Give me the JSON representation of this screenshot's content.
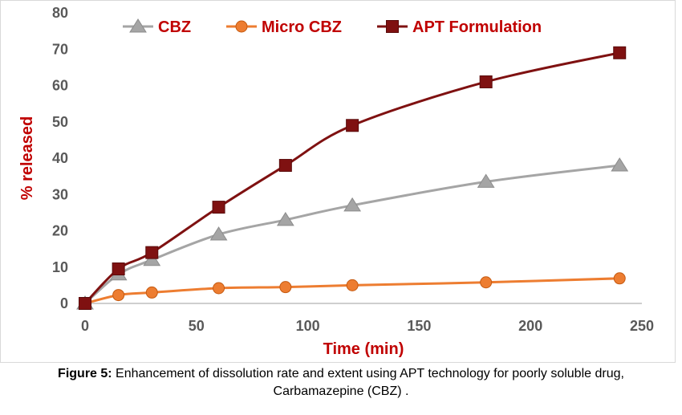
{
  "chart_data": {
    "type": "line",
    "title": "",
    "xlabel": "Time (min)",
    "ylabel": "% released",
    "xlim": [
      0,
      250
    ],
    "ylim": [
      0,
      80
    ],
    "xticks": [
      0,
      50,
      100,
      150,
      200,
      250
    ],
    "yticks": [
      0,
      10,
      20,
      30,
      40,
      50,
      60,
      70,
      80
    ],
    "grid": false,
    "legend_position": "top",
    "series": [
      {
        "name": "CBZ",
        "color": "#a5a5a5",
        "marker": "triangle",
        "x": [
          0,
          15,
          30,
          60,
          90,
          120,
          180,
          240
        ],
        "y": [
          0,
          8,
          12,
          19,
          23,
          27,
          33.5,
          38
        ]
      },
      {
        "name": "Micro CBZ",
        "color": "#ed7d31",
        "marker": "circle",
        "x": [
          0,
          15,
          30,
          60,
          90,
          120,
          180,
          240
        ],
        "y": [
          0,
          2.3,
          3,
          4.2,
          4.5,
          5,
          5.8,
          6.9
        ]
      },
      {
        "name": "APT Formulation",
        "color": "#7f1111",
        "marker": "square",
        "x": [
          0,
          15,
          30,
          60,
          90,
          120,
          180,
          240
        ],
        "y": [
          0,
          9.5,
          14,
          26.5,
          38,
          49,
          61,
          69
        ]
      }
    ]
  },
  "caption": {
    "lead": "Figure 5:",
    "text": " Enhancement of dissolution rate and extent using APT technology for poorly soluble drug,",
    "line2": "Carbamazepine (CBZ) ."
  }
}
